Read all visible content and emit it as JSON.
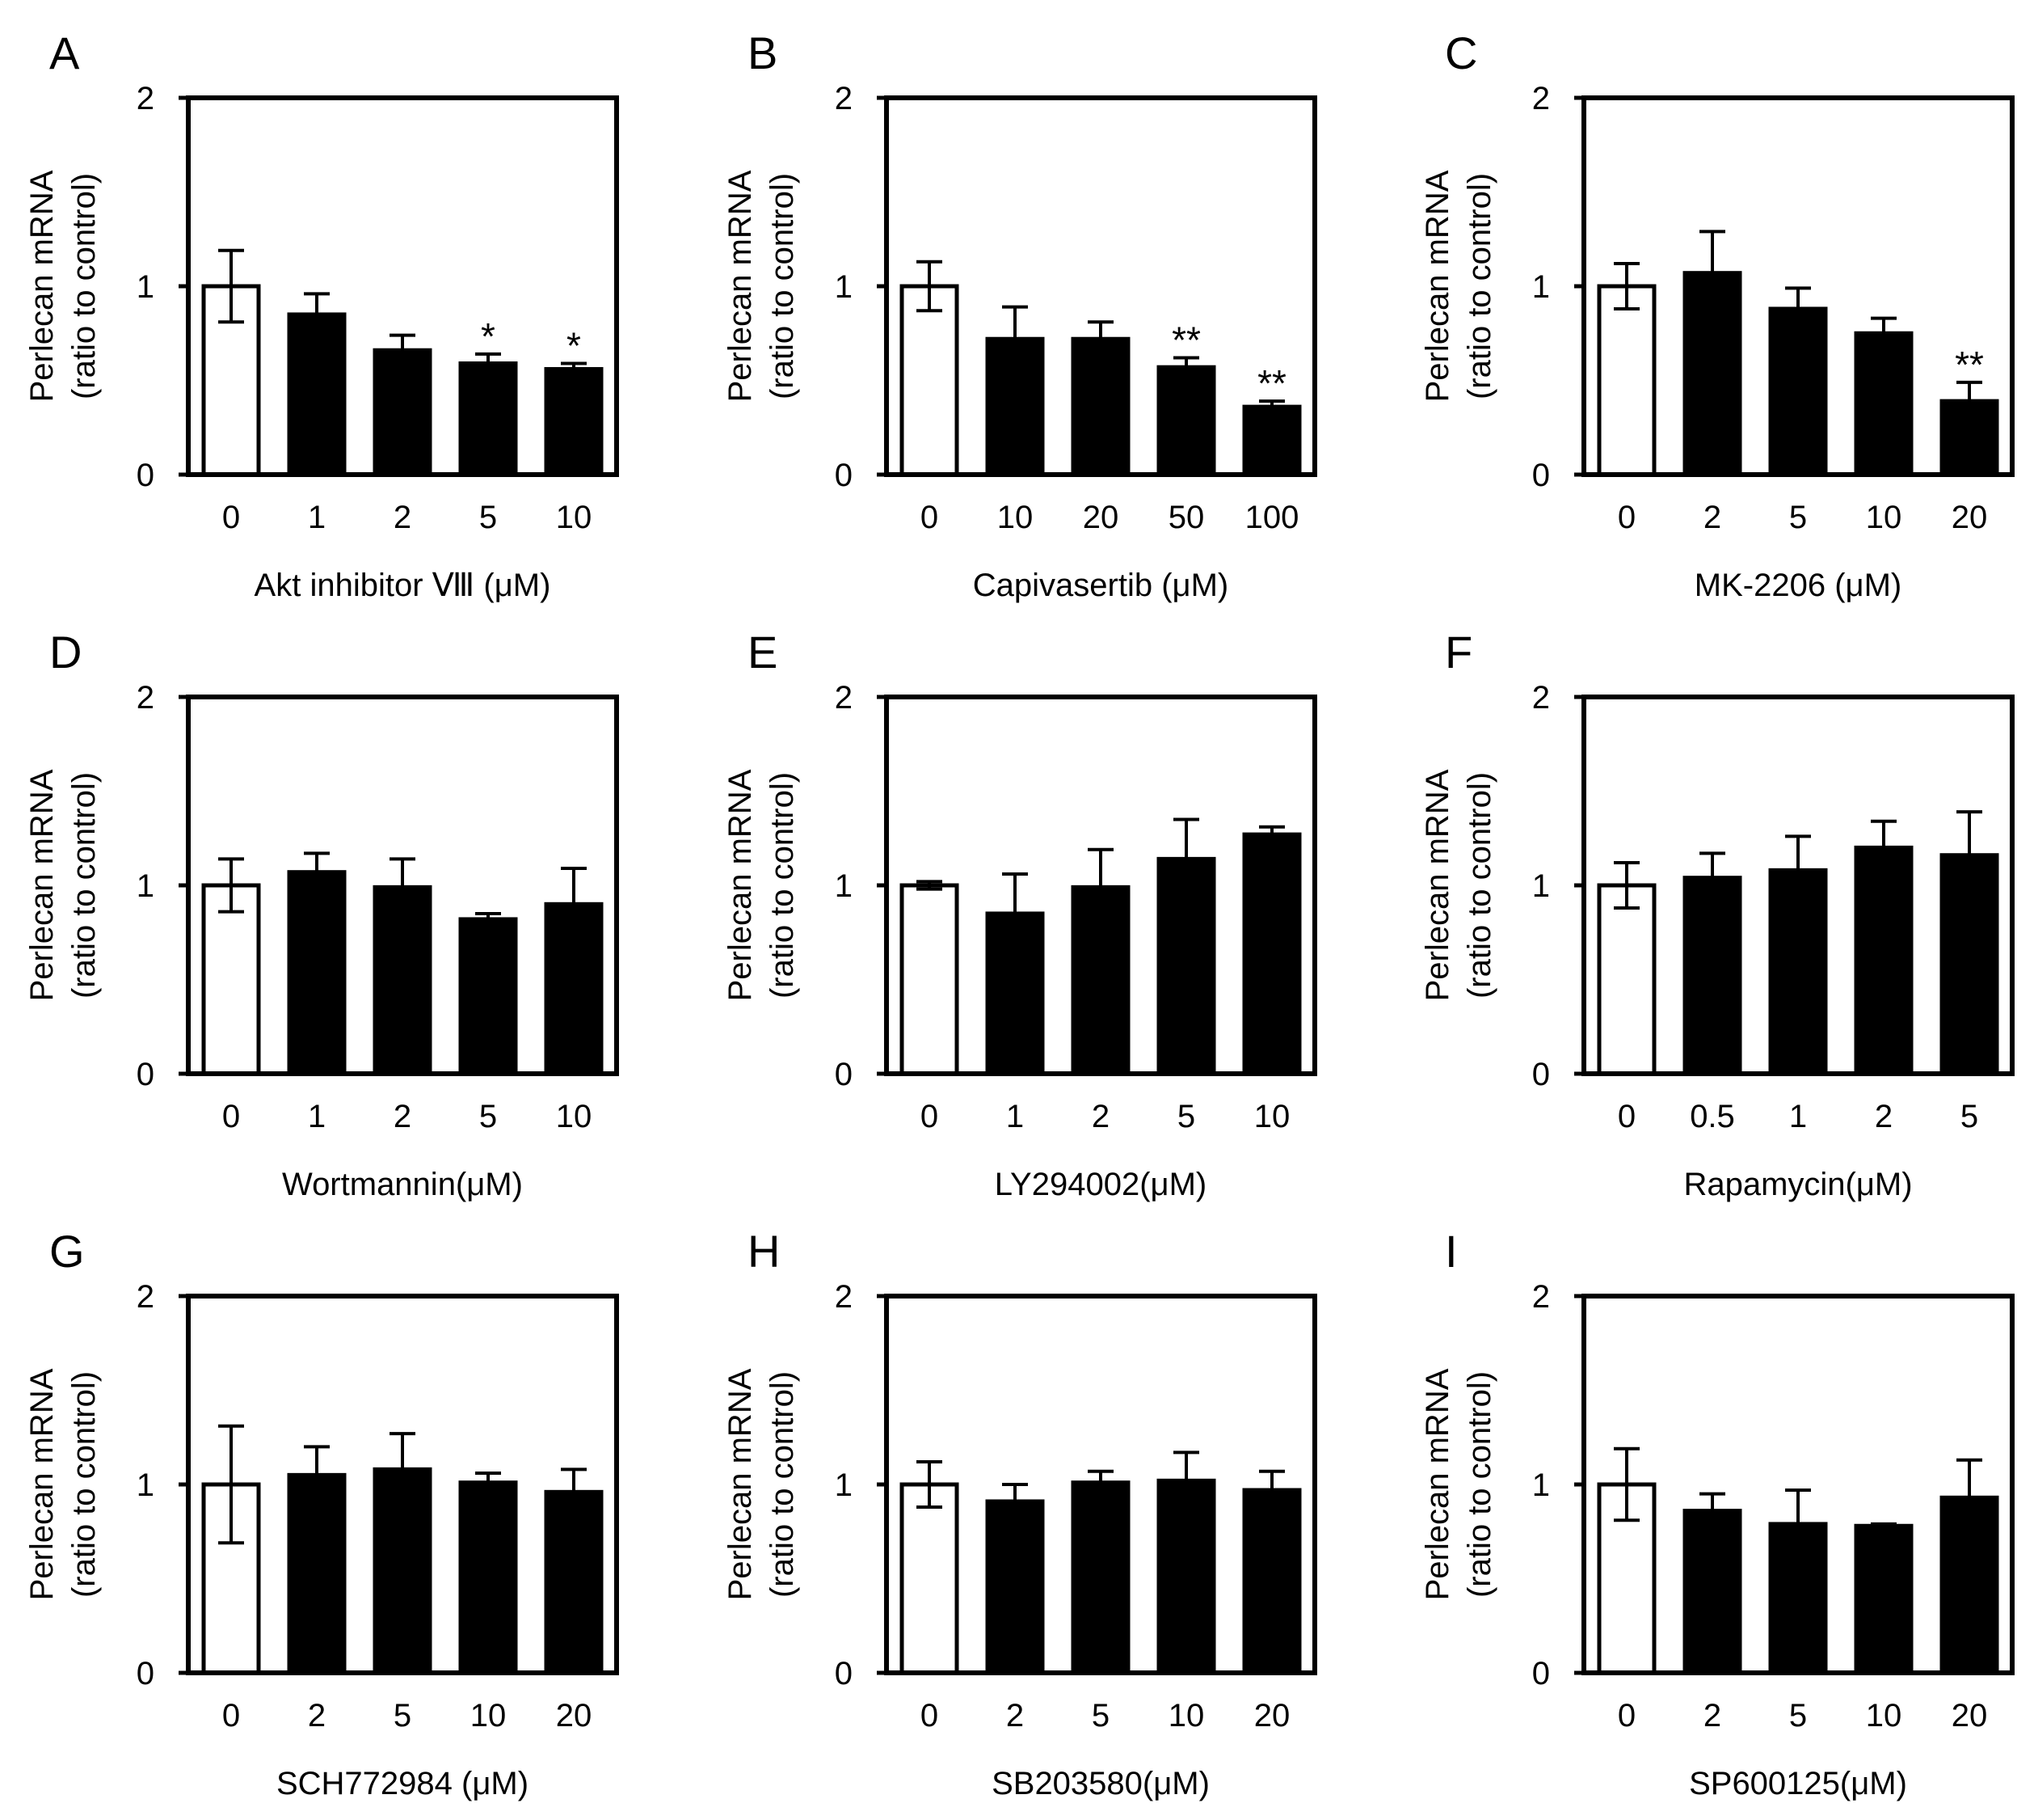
{
  "chart_data": [
    {
      "panel": "A",
      "type": "bar",
      "xlabel": "Akt inhibitor Ⅷ (μM)",
      "ylabel_line1": "Perlecan mRNA",
      "ylabel_line2": "(ratio to control)",
      "ylim": [
        0,
        2
      ],
      "yticks": [
        "0",
        "1",
        "2"
      ],
      "categories": [
        "0",
        "1",
        "2",
        "5",
        "10"
      ],
      "values": [
        1.0,
        0.85,
        0.66,
        0.59,
        0.56
      ],
      "errors": [
        0.19,
        0.11,
        0.08,
        0.05,
        0.03
      ],
      "significance": [
        "",
        "",
        "",
        "*",
        "*"
      ],
      "colors": [
        "#ffffff",
        "#000000",
        "#000000",
        "#000000",
        "#000000"
      ]
    },
    {
      "panel": "B",
      "type": "bar",
      "xlabel": "Capivasertib (μM)",
      "ylabel_line1": "Perlecan mRNA",
      "ylabel_line2": "(ratio to control)",
      "ylim": [
        0,
        2
      ],
      "yticks": [
        "0",
        "1",
        "2"
      ],
      "categories": [
        "0",
        "10",
        "20",
        "50",
        "100"
      ],
      "values": [
        1.0,
        0.72,
        0.72,
        0.57,
        0.36
      ],
      "errors": [
        0.13,
        0.17,
        0.09,
        0.05,
        0.03
      ],
      "significance": [
        "",
        "",
        "",
        "**",
        "**"
      ],
      "colors": [
        "#ffffff",
        "#000000",
        "#000000",
        "#000000",
        "#000000"
      ]
    },
    {
      "panel": "C",
      "type": "bar",
      "xlabel": "MK-2206 (μM)",
      "ylabel_line1": "Perlecan mRNA",
      "ylabel_line2": "(ratio to control)",
      "ylim": [
        0,
        2
      ],
      "yticks": [
        "0",
        "1",
        "2"
      ],
      "categories": [
        "0",
        "2",
        "5",
        "10",
        "20"
      ],
      "values": [
        1.0,
        1.07,
        0.88,
        0.75,
        0.39
      ],
      "errors": [
        0.12,
        0.22,
        0.11,
        0.08,
        0.1
      ],
      "significance": [
        "",
        "",
        "",
        "",
        "**"
      ],
      "colors": [
        "#ffffff",
        "#000000",
        "#000000",
        "#000000",
        "#000000"
      ]
    },
    {
      "panel": "D",
      "type": "bar",
      "xlabel": "Wortmannin(μM)",
      "ylabel_line1": "Perlecan mRNA",
      "ylabel_line2": "(ratio to control)",
      "ylim": [
        0,
        2
      ],
      "yticks": [
        "0",
        "1",
        "2"
      ],
      "categories": [
        "0",
        "1",
        "2",
        "5",
        "10"
      ],
      "values": [
        1.0,
        1.07,
        0.99,
        0.82,
        0.9
      ],
      "errors": [
        0.14,
        0.1,
        0.15,
        0.03,
        0.19
      ],
      "significance": [
        "",
        "",
        "",
        "",
        ""
      ],
      "colors": [
        "#ffffff",
        "#000000",
        "#000000",
        "#000000",
        "#000000"
      ]
    },
    {
      "panel": "E",
      "type": "bar",
      "xlabel": "LY294002(μM)",
      "ylabel_line1": "Perlecan mRNA",
      "ylabel_line2": "(ratio to control)",
      "ylim": [
        0,
        2
      ],
      "yticks": [
        "0",
        "1",
        "2"
      ],
      "categories": [
        "0",
        "1",
        "2",
        "5",
        "10"
      ],
      "values": [
        1.0,
        0.85,
        0.99,
        1.14,
        1.27
      ],
      "errors": [
        0.02,
        0.21,
        0.2,
        0.21,
        0.04
      ],
      "significance": [
        "",
        "",
        "",
        "",
        ""
      ],
      "colors": [
        "#ffffff",
        "#000000",
        "#000000",
        "#000000",
        "#000000"
      ]
    },
    {
      "panel": "F",
      "type": "bar",
      "xlabel": "Rapamycin(μM)",
      "ylabel_line1": "Perlecan mRNA",
      "ylabel_line2": "(ratio to control)",
      "ylim": [
        0,
        2
      ],
      "yticks": [
        "0",
        "1",
        "2"
      ],
      "categories": [
        "0",
        "0.5",
        "1",
        "2",
        "5"
      ],
      "values": [
        1.0,
        1.04,
        1.08,
        1.2,
        1.16
      ],
      "errors": [
        0.12,
        0.13,
        0.18,
        0.14,
        0.23
      ],
      "significance": [
        "",
        "",
        "",
        "",
        ""
      ],
      "colors": [
        "#ffffff",
        "#000000",
        "#000000",
        "#000000",
        "#000000"
      ]
    },
    {
      "panel": "G",
      "type": "bar",
      "xlabel": "SCH772984 (μM)",
      "ylabel_line1": "Perlecan mRNA",
      "ylabel_line2": "(ratio to control)",
      "ylim": [
        0,
        2
      ],
      "yticks": [
        "0",
        "1",
        "2"
      ],
      "categories": [
        "0",
        "2",
        "5",
        "10",
        "20"
      ],
      "values": [
        1.0,
        1.05,
        1.08,
        1.01,
        0.96
      ],
      "errors": [
        0.31,
        0.15,
        0.19,
        0.05,
        0.12
      ],
      "significance": [
        "",
        "",
        "",
        "",
        ""
      ],
      "colors": [
        "#ffffff",
        "#000000",
        "#000000",
        "#000000",
        "#000000"
      ]
    },
    {
      "panel": "H",
      "type": "bar",
      "xlabel": "SB203580(μM)",
      "ylabel_line1": "Perlecan mRNA",
      "ylabel_line2": "(ratio to control)",
      "ylim": [
        0,
        2
      ],
      "yticks": [
        "0",
        "1",
        "2"
      ],
      "categories": [
        "0",
        "2",
        "5",
        "10",
        "20"
      ],
      "values": [
        1.0,
        0.91,
        1.01,
        1.02,
        0.97
      ],
      "errors": [
        0.12,
        0.09,
        0.06,
        0.15,
        0.1
      ],
      "significance": [
        "",
        "",
        "",
        "",
        ""
      ],
      "colors": [
        "#ffffff",
        "#000000",
        "#000000",
        "#000000",
        "#000000"
      ]
    },
    {
      "panel": "I",
      "type": "bar",
      "xlabel": "SP600125(μM)",
      "ylabel_line1": "Perlecan mRNA",
      "ylabel_line2": "(ratio to control)",
      "ylim": [
        0,
        2
      ],
      "yticks": [
        "0",
        "1",
        "2"
      ],
      "categories": [
        "0",
        "2",
        "5",
        "10",
        "20"
      ],
      "values": [
        1.0,
        0.86,
        0.79,
        0.78,
        0.93
      ],
      "errors": [
        0.19,
        0.09,
        0.18,
        0.01,
        0.2
      ],
      "significance": [
        "",
        "",
        "",
        "",
        ""
      ],
      "colors": [
        "#ffffff",
        "#000000",
        "#000000",
        "#000000",
        "#000000"
      ]
    }
  ]
}
